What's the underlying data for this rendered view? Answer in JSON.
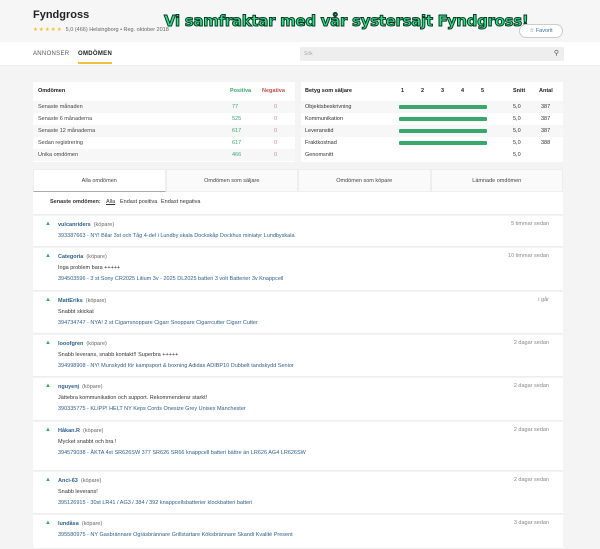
{
  "header": {
    "title": "Fyndgross",
    "stars": "★★★★★",
    "rating": "5,0 (466) Helsingborg • Reg. oktober 2018",
    "banner": "Vi samfraktar med vår systersajt Fyndgross!",
    "favorite": "☆ Favorit"
  },
  "nav": {
    "tabs": [
      "ANNONSER",
      "OMDÖMEN"
    ],
    "active": "OMDÖMEN",
    "search_placeholder": "Sök"
  },
  "summary": {
    "headers": [
      "Omdömen",
      "Positiva",
      "Negativa"
    ],
    "rows": [
      [
        "Senaste månaden",
        "77",
        "0"
      ],
      [
        "Senaste 6 månaderna",
        "525",
        "0"
      ],
      [
        "Senaste 12 månaderna",
        "617",
        "0"
      ],
      [
        "Sedan registrering",
        "617",
        "0"
      ],
      [
        "Unika omdömen",
        "466",
        "0"
      ]
    ],
    "positive_color": "#3aa76d",
    "negative_color": "#c0504d"
  },
  "ratings": {
    "headers": [
      "Betyg som säljare",
      "1",
      "2",
      "3",
      "4",
      "5",
      "Snitt",
      "Antal"
    ],
    "rows": [
      {
        "label": "Objektsbeskrivning",
        "score": "5,0",
        "count": "387",
        "value": 5
      },
      {
        "label": "Kommunikation",
        "score": "5,0",
        "count": "387",
        "value": 5
      },
      {
        "label": "Leveranstid",
        "score": "5,0",
        "count": "387",
        "value": 5
      },
      {
        "label": "Fraktkostnad",
        "score": "5,0",
        "count": "388",
        "value": 5
      }
    ],
    "average_label": "Genomsnitt",
    "average": "5,0"
  },
  "review_tabs": [
    "Alla omdömen",
    "Omdömen som säljare",
    "Omdömen som köpare",
    "Lämnade omdömen"
  ],
  "filter": {
    "label": "Senaste omdömen:",
    "options": [
      "Alla",
      "Endast positiva",
      "Endast negativa"
    ]
  },
  "reviews": [
    {
      "user": "vulcanriders",
      "role": "(köpare)",
      "time": "5 timmar sedan",
      "comment": "",
      "item": "393387663 - NY! Bilar 3st och Tåg 4-del i Lundby skala Dockskåp Dockhus miniatyr Lundbyskala"
    },
    {
      "user": "Categoria",
      "role": "(köpare)",
      "time": "10 timmar sedan",
      "comment": "Inga problem bara +++++",
      "item": "394503596 - 3 st Sony CR2025 Litium 3v - 2025 DL2025 batteri 3 volt Batterier 3v Knappcell"
    },
    {
      "user": "MattEriks",
      "role": "(köpare)",
      "time": "i går",
      "comment": "Snabbt skickat",
      "item": "394734747 - NYA! 2 st Cigarrsnoppare Cigarr Snoppare Cigarrcutter Cigarr Cutter"
    },
    {
      "user": "looofgren",
      "role": "(köpare)",
      "time": "2 dagar sedan",
      "comment": "Snabb leverans, snabb kontakt!! Superbra +++++",
      "item": "394998908 - NY! Munskydd för kampsport & boxning Adidas ADIBP10 Dubbelt tandskydd Senior"
    },
    {
      "user": "nguyenj",
      "role": "(köpare)",
      "time": "2 dagar sedan",
      "comment": "Jättebra kommunikation och support. Rekommenderar starkt!",
      "item": "390335775 - KLIPP! HELT NY Keps Cords Onesize Grey Unisex Manchester"
    },
    {
      "user": "Håkan.R",
      "role": "(köpare)",
      "time": "2 dagar sedan",
      "comment": "Mycket snabbt och bra !",
      "item": "394579038 - ÄKTA 4st SR626SW 377 SR626 SR66 knappcell batteri bättre än LR626 AG4 LR626SW"
    },
    {
      "user": "Anci-63",
      "role": "(köpare)",
      "time": "2 dagar sedan",
      "comment": "Snabb leverans!",
      "item": "395126915 - 30st LR41 / AG3 / 384 / 392 knappcellsbatterier klockbatteri batteri"
    },
    {
      "user": "lundåsa",
      "role": "(köpare)",
      "time": "3 dagar sedan",
      "comment": "",
      "item": "395580975 - NY Gasbrännare Ogräsbrännare Grillstartare Köksbrännare Skandi Kvalité Present"
    }
  ]
}
